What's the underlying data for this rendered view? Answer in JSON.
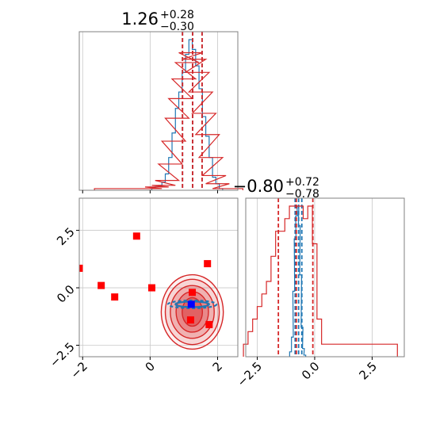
{
  "colors": {
    "blue": "#1f77b4",
    "red": "#d62728",
    "marker_red": "#ff0000",
    "marker_blue": "#0000ff",
    "grid": "#c8c8c8",
    "frame": "#808080"
  },
  "chart_data": [
    {
      "type": "histogram",
      "panel": "top-left marginal (parameter 1)",
      "title_value": "1.26",
      "title_sup": "+0.28",
      "title_sub": "−0.30",
      "xlim": [
        -2.1,
        2.6
      ],
      "grid": true,
      "series": [
        {
          "color": "blue",
          "quantiles": [
            0.96,
            1.26,
            1.54
          ],
          "bins": [
            [
              0.1,
              0.01
            ],
            [
              0.2,
              0.02
            ],
            [
              0.3,
              0.03
            ],
            [
              0.4,
              0.05
            ],
            [
              0.5,
              0.1
            ],
            [
              0.6,
              0.2
            ],
            [
              0.7,
              0.35
            ],
            [
              0.8,
              0.5
            ],
            [
              0.9,
              0.6
            ],
            [
              1.0,
              0.72
            ],
            [
              1.1,
              0.83
            ],
            [
              1.2,
              0.92
            ],
            [
              1.3,
              0.86
            ],
            [
              1.4,
              0.76
            ],
            [
              1.5,
              0.62
            ],
            [
              1.6,
              0.45
            ],
            [
              1.7,
              0.33
            ],
            [
              1.8,
              0.2
            ],
            [
              1.9,
              0.08
            ],
            [
              2.0,
              0.04
            ],
            [
              2.1,
              0.01
            ]
          ]
        },
        {
          "color": "red",
          "quantiles": [
            0.96,
            1.26,
            1.54
          ],
          "bins": [
            [
              -1.3,
              0.01
            ],
            [
              -0.6,
              0.01
            ],
            [
              -0.3,
              0.01
            ],
            [
              0.0,
              0.01
            ],
            [
              0.2,
              0.02
            ],
            [
              0.4,
              0.03
            ],
            [
              0.5,
              0.06
            ],
            [
              0.6,
              0.16
            ],
            [
              0.7,
              0.3
            ],
            [
              0.8,
              0.44
            ],
            [
              0.9,
              0.56
            ],
            [
              1.0,
              0.68
            ],
            [
              1.1,
              0.78
            ],
            [
              1.2,
              0.84
            ],
            [
              1.3,
              0.8
            ],
            [
              1.4,
              0.72
            ],
            [
              1.5,
              0.6
            ],
            [
              1.6,
              0.47
            ],
            [
              1.7,
              0.34
            ],
            [
              1.8,
              0.2
            ],
            [
              1.9,
              0.09
            ],
            [
              2.0,
              0.04
            ],
            [
              2.2,
              0.01
            ],
            [
              2.4,
              0.01
            ]
          ]
        }
      ]
    },
    {
      "type": "scatter-contour",
      "panel": "bottom-left 2D (parameter 1 vs parameter 2)",
      "xlim": [
        -2.1,
        2.6
      ],
      "ylim": [
        -3.0,
        3.9
      ],
      "x_ticks": [
        -2,
        0,
        2
      ],
      "x_tick_labels": [
        "−2",
        "0",
        "2"
      ],
      "y_ticks": [
        -2.5,
        0.0,
        2.5
      ],
      "y_tick_labels": [
        "−2.5",
        "0.0",
        "2.5"
      ],
      "grid": true,
      "red_contours": {
        "color": "red",
        "center": [
          1.25,
          -1.05
        ],
        "levels": [
          [
            0.3,
            0.62
          ],
          [
            0.48,
            0.88
          ],
          [
            0.65,
            1.15
          ],
          [
            0.8,
            1.42
          ],
          [
            0.92,
            1.62
          ]
        ]
      },
      "blue_contours": {
        "color": "blue",
        "center": [
          1.25,
          -0.72
        ],
        "levels": [
          [
            0.5,
            0.12
          ],
          [
            0.72,
            0.17
          ]
        ]
      },
      "red_points": [
        [
          -2.1,
          0.85
        ],
        [
          -1.45,
          0.1
        ],
        [
          -1.05,
          -0.4
        ],
        [
          -0.4,
          2.25
        ],
        [
          0.05,
          0.0
        ],
        [
          1.25,
          -0.2
        ],
        [
          1.2,
          -1.4
        ],
        [
          1.7,
          1.05
        ],
        [
          1.75,
          -1.6
        ]
      ],
      "blue_point": [
        1.22,
        -0.72
      ]
    },
    {
      "type": "histogram",
      "panel": "bottom-right marginal (parameter 2)",
      "title_value": "−0.80",
      "title_sup": "+0.72",
      "title_sub": "−0.78",
      "xlim": [
        -3.0,
        3.9
      ],
      "x_ticks": [
        -2.5,
        0.0,
        2.5
      ],
      "x_tick_labels": [
        "−2.5",
        "0.0",
        "2.5"
      ],
      "grid": true,
      "series": [
        {
          "color": "blue",
          "quantiles": [
            -0.85,
            -0.7,
            -0.56
          ],
          "bins": [
            [
              -1.05,
              0.03
            ],
            [
              -0.97,
              0.12
            ],
            [
              -0.91,
              0.4
            ],
            [
              -0.85,
              0.72
            ],
            [
              -0.79,
              0.86
            ],
            [
              -0.73,
              0.92
            ],
            [
              -0.67,
              0.8
            ],
            [
              -0.61,
              0.5
            ],
            [
              -0.55,
              0.18
            ],
            [
              -0.49,
              0.05
            ],
            [
              -0.43,
              0.01
            ]
          ]
        },
        {
          "color": "red",
          "quantiles": [
            -1.58,
            -0.8,
            -0.08
          ],
          "bins": [
            [
              -3.0,
              0.01
            ],
            [
              -2.8,
              0.02
            ],
            [
              -2.6,
              0.03
            ],
            [
              -2.4,
              0.04
            ],
            [
              -2.2,
              0.05
            ],
            [
              -2.0,
              0.06
            ],
            [
              -1.8,
              0.08
            ],
            [
              -1.6,
              0.1
            ],
            [
              -1.4,
              0.1
            ],
            [
              -1.2,
              0.11
            ],
            [
              -1.0,
              0.12
            ],
            [
              -0.8,
              0.12
            ],
            [
              -0.6,
              0.12
            ],
            [
              -0.4,
              0.11
            ],
            [
              -0.2,
              0.12
            ],
            [
              0.0,
              0.09
            ],
            [
              0.2,
              0.03
            ],
            [
              0.4,
              0.01
            ],
            [
              0.6,
              0.01
            ],
            [
              0.8,
              0.01
            ],
            [
              1.0,
              0.01
            ],
            [
              1.5,
              0.01
            ],
            [
              2.0,
              0.01
            ],
            [
              2.5,
              0.01
            ],
            [
              3.0,
              0.01
            ],
            [
              3.5,
              0.01
            ]
          ]
        }
      ]
    }
  ]
}
